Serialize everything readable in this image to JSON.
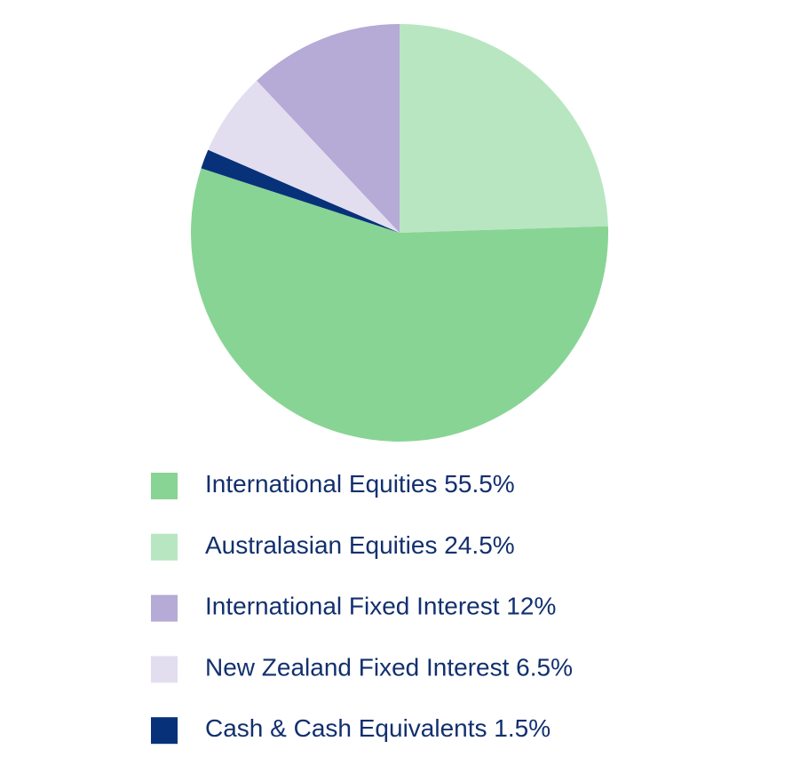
{
  "chart_data": {
    "type": "pie",
    "categories": [
      "International Equities",
      "Australasian Equities",
      "International Fixed Interest",
      "New Zealand Fixed Interest",
      "Cash & Cash Equivalents"
    ],
    "values": [
      55.5,
      24.5,
      12,
      6.5,
      1.5
    ],
    "value_labels": [
      "55.5%",
      "24.5%",
      "12%",
      "6.5%",
      "1.5%"
    ],
    "colors": [
      "#88d495",
      "#b8e6c1",
      "#b6aad6",
      "#e2def0",
      "#07327a"
    ]
  }
}
